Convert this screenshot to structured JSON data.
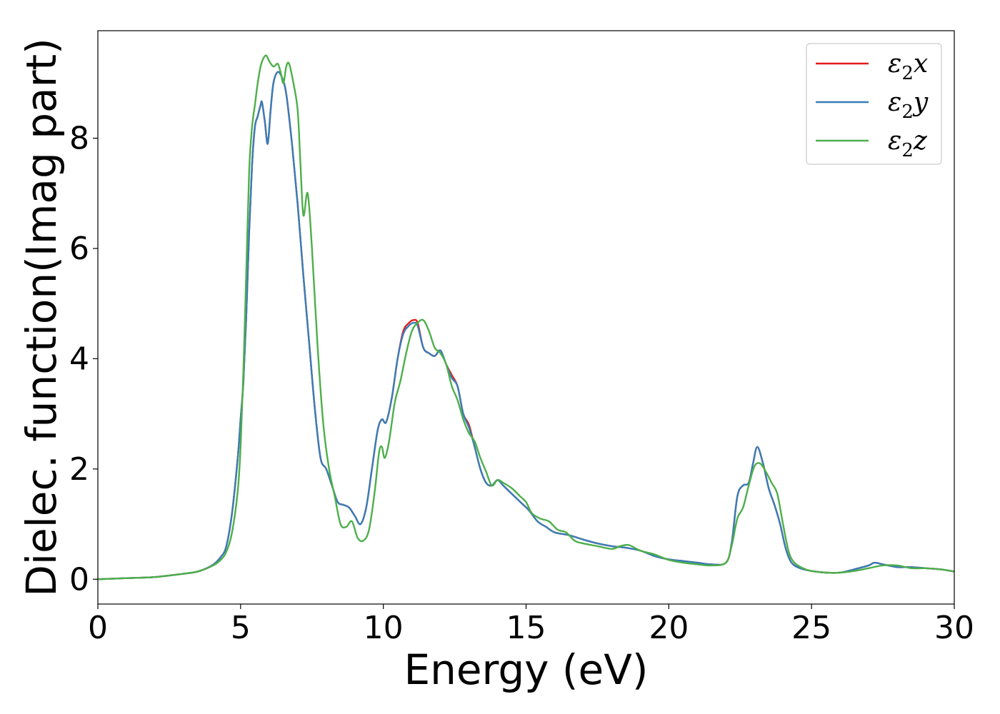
{
  "chart_data": {
    "type": "line",
    "title": "",
    "xlabel": "Energy (eV)",
    "ylabel": "Dielec. function(Imag part)",
    "xlim": [
      0,
      30
    ],
    "ylim": [
      -0.45,
      9.95
    ],
    "xticks": [
      0,
      5,
      10,
      15,
      20,
      25,
      30
    ],
    "yticks": [
      0,
      2,
      4,
      6,
      8
    ],
    "grid": false,
    "legend_position": "top-right",
    "series": [
      {
        "name": "ε₂x",
        "legend_main": "ε",
        "legend_sub": "2",
        "legend_var": "x",
        "color": "#e41a1c",
        "x": [
          0,
          1,
          2,
          3,
          3.5,
          4,
          4.3,
          4.5,
          4.7,
          4.9,
          5.0,
          5.1,
          5.2,
          5.3,
          5.4,
          5.5,
          5.6,
          5.7,
          5.75,
          5.85,
          5.95,
          6.05,
          6.15,
          6.3,
          6.45,
          6.6,
          6.8,
          7.0,
          7.2,
          7.4,
          7.6,
          7.8,
          8.0,
          8.2,
          8.4,
          8.6,
          8.8,
          9.0,
          9.2,
          9.4,
          9.6,
          9.8,
          9.95,
          10.1,
          10.3,
          10.5,
          10.7,
          10.9,
          11.05,
          11.2,
          11.4,
          11.6,
          11.8,
          12.0,
          12.2,
          12.4,
          12.6,
          12.8,
          13.0,
          13.2,
          13.4,
          13.6,
          13.8,
          14.0,
          14.2,
          14.5,
          14.8,
          15.1,
          15.4,
          15.7,
          16.0,
          16.5,
          17.0,
          17.5,
          18.0,
          18.5,
          19.0,
          19.5,
          20.0,
          20.5,
          21.0,
          21.5,
          22.0,
          22.2,
          22.4,
          22.6,
          22.8,
          22.95,
          23.1,
          23.3,
          23.5,
          23.7,
          23.9,
          24.1,
          24.3,
          24.6,
          25.0,
          25.5,
          26.0,
          26.5,
          27.0,
          27.2,
          27.5,
          28.0,
          28.5,
          29.0,
          29.5,
          30.0
        ],
        "y": [
          0.0,
          0.02,
          0.04,
          0.1,
          0.14,
          0.25,
          0.4,
          0.6,
          1.2,
          2.2,
          2.9,
          3.6,
          4.8,
          6.3,
          7.5,
          8.2,
          8.4,
          8.6,
          8.65,
          8.3,
          7.9,
          8.5,
          9.0,
          9.2,
          9.1,
          8.8,
          7.9,
          6.8,
          5.5,
          4.3,
          3.1,
          2.2,
          2.0,
          1.7,
          1.4,
          1.35,
          1.3,
          1.15,
          1.0,
          1.3,
          2.0,
          2.7,
          2.9,
          2.85,
          3.3,
          4.0,
          4.5,
          4.65,
          4.7,
          4.65,
          4.2,
          4.1,
          4.05,
          4.15,
          3.9,
          3.7,
          3.5,
          3.0,
          2.8,
          2.4,
          2.0,
          1.75,
          1.7,
          1.8,
          1.7,
          1.55,
          1.4,
          1.25,
          1.05,
          0.95,
          0.85,
          0.8,
          0.72,
          0.65,
          0.6,
          0.57,
          0.52,
          0.42,
          0.36,
          0.33,
          0.3,
          0.27,
          0.3,
          0.65,
          1.5,
          1.7,
          1.75,
          2.1,
          2.4,
          2.1,
          1.65,
          1.35,
          1.0,
          0.55,
          0.3,
          0.2,
          0.15,
          0.12,
          0.12,
          0.18,
          0.25,
          0.3,
          0.27,
          0.22,
          0.22,
          0.2,
          0.18,
          0.14
        ]
      },
      {
        "name": "ε₂y",
        "legend_main": "ε",
        "legend_sub": "2",
        "legend_var": "y",
        "color": "#377eb8",
        "x": [
          0,
          1,
          2,
          3,
          3.5,
          4,
          4.3,
          4.5,
          4.7,
          4.9,
          5.0,
          5.1,
          5.2,
          5.3,
          5.4,
          5.5,
          5.6,
          5.7,
          5.75,
          5.85,
          5.95,
          6.05,
          6.15,
          6.3,
          6.45,
          6.6,
          6.8,
          7.0,
          7.2,
          7.4,
          7.6,
          7.8,
          8.0,
          8.2,
          8.4,
          8.6,
          8.8,
          9.0,
          9.2,
          9.4,
          9.6,
          9.8,
          9.95,
          10.1,
          10.3,
          10.5,
          10.7,
          10.9,
          11.05,
          11.2,
          11.4,
          11.6,
          11.8,
          12.0,
          12.2,
          12.4,
          12.6,
          12.8,
          13.0,
          13.2,
          13.4,
          13.6,
          13.8,
          14.0,
          14.2,
          14.5,
          14.8,
          15.1,
          15.4,
          15.7,
          16.0,
          16.5,
          17.0,
          17.5,
          18.0,
          18.5,
          19.0,
          19.5,
          20.0,
          20.5,
          21.0,
          21.5,
          22.0,
          22.2,
          22.4,
          22.6,
          22.8,
          22.95,
          23.1,
          23.3,
          23.5,
          23.7,
          23.9,
          24.1,
          24.3,
          24.6,
          25.0,
          25.5,
          26.0,
          26.5,
          27.0,
          27.2,
          27.5,
          28.0,
          28.5,
          29.0,
          29.5,
          30.0
        ],
        "y": [
          0.0,
          0.02,
          0.04,
          0.1,
          0.14,
          0.25,
          0.4,
          0.6,
          1.2,
          2.2,
          2.9,
          3.6,
          4.8,
          6.3,
          7.5,
          8.2,
          8.4,
          8.6,
          8.65,
          8.3,
          7.9,
          8.5,
          9.0,
          9.2,
          9.1,
          8.8,
          7.9,
          6.8,
          5.5,
          4.3,
          3.1,
          2.2,
          2.0,
          1.7,
          1.4,
          1.35,
          1.3,
          1.15,
          1.0,
          1.3,
          2.0,
          2.7,
          2.9,
          2.85,
          3.3,
          4.0,
          4.45,
          4.6,
          4.65,
          4.6,
          4.2,
          4.1,
          4.05,
          4.15,
          3.9,
          3.65,
          3.5,
          3.0,
          2.75,
          2.4,
          2.0,
          1.75,
          1.7,
          1.8,
          1.7,
          1.55,
          1.4,
          1.25,
          1.05,
          0.95,
          0.85,
          0.8,
          0.72,
          0.65,
          0.6,
          0.57,
          0.52,
          0.42,
          0.36,
          0.33,
          0.3,
          0.27,
          0.3,
          0.65,
          1.5,
          1.7,
          1.75,
          2.1,
          2.4,
          2.1,
          1.65,
          1.35,
          1.0,
          0.55,
          0.3,
          0.2,
          0.15,
          0.12,
          0.12,
          0.18,
          0.25,
          0.3,
          0.27,
          0.22,
          0.22,
          0.2,
          0.18,
          0.14
        ]
      },
      {
        "name": "ε₂z",
        "legend_main": "ε",
        "legend_sub": "2",
        "legend_var": "z",
        "color": "#4daf4a",
        "x": [
          0,
          1,
          2,
          3,
          3.5,
          4,
          4.3,
          4.5,
          4.7,
          4.9,
          5.0,
          5.1,
          5.2,
          5.3,
          5.4,
          5.5,
          5.6,
          5.7,
          5.8,
          5.9,
          6.0,
          6.15,
          6.3,
          6.4,
          6.5,
          6.6,
          6.7,
          6.85,
          7.0,
          7.1,
          7.2,
          7.35,
          7.5,
          7.7,
          7.9,
          8.1,
          8.3,
          8.5,
          8.7,
          8.9,
          9.1,
          9.3,
          9.5,
          9.7,
          9.85,
          9.95,
          10.05,
          10.2,
          10.4,
          10.6,
          10.8,
          11.0,
          11.2,
          11.4,
          11.6,
          11.8,
          12.0,
          12.2,
          12.4,
          12.6,
          12.8,
          13.0,
          13.2,
          13.4,
          13.6,
          13.8,
          14.0,
          14.2,
          14.5,
          14.8,
          15.0,
          15.2,
          15.5,
          15.8,
          16.1,
          16.4,
          16.7,
          17.0,
          17.5,
          18.0,
          18.3,
          18.6,
          19.0,
          19.5,
          20.0,
          20.5,
          21.0,
          21.5,
          22.0,
          22.2,
          22.4,
          22.6,
          22.8,
          23.0,
          23.2,
          23.4,
          23.6,
          23.8,
          24.0,
          24.2,
          24.4,
          24.7,
          25.0,
          25.5,
          26.0,
          26.5,
          27.0,
          27.5,
          28.0,
          28.5,
          29.0,
          29.5,
          30.0
        ],
        "y": [
          0.0,
          0.02,
          0.04,
          0.1,
          0.14,
          0.24,
          0.35,
          0.5,
          0.85,
          1.6,
          2.4,
          3.8,
          5.6,
          7.4,
          8.2,
          8.6,
          9.0,
          9.3,
          9.45,
          9.5,
          9.4,
          9.3,
          9.35,
          9.2,
          9.0,
          9.3,
          9.35,
          9.0,
          8.5,
          7.5,
          6.6,
          7.0,
          6.0,
          4.2,
          2.8,
          2.0,
          1.5,
          1.0,
          0.95,
          1.05,
          0.75,
          0.7,
          0.9,
          1.6,
          2.3,
          2.4,
          2.2,
          2.5,
          3.2,
          3.6,
          4.1,
          4.5,
          4.65,
          4.7,
          4.5,
          4.2,
          4.1,
          3.9,
          3.5,
          3.25,
          2.9,
          2.65,
          2.5,
          2.2,
          1.95,
          1.7,
          1.8,
          1.75,
          1.65,
          1.5,
          1.4,
          1.2,
          1.1,
          1.05,
          0.9,
          0.85,
          0.7,
          0.65,
          0.6,
          0.55,
          0.6,
          0.62,
          0.52,
          0.45,
          0.35,
          0.3,
          0.27,
          0.25,
          0.3,
          0.6,
          1.1,
          1.3,
          1.7,
          2.05,
          2.1,
          1.95,
          1.75,
          1.55,
          1.0,
          0.5,
          0.3,
          0.2,
          0.15,
          0.12,
          0.12,
          0.15,
          0.2,
          0.25,
          0.25,
          0.2,
          0.2,
          0.18,
          0.14
        ]
      }
    ]
  }
}
